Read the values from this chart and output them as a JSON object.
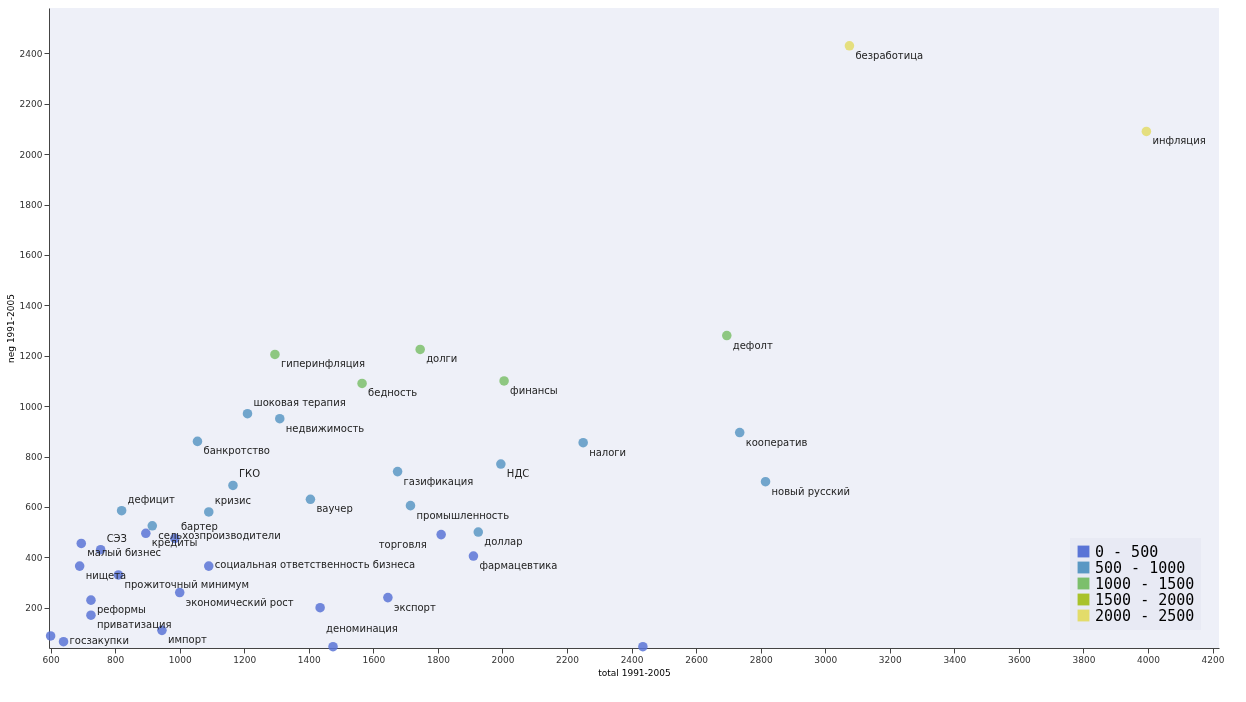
{
  "chart_data": {
    "type": "scatter",
    "xlabel": "total 1991-2005",
    "ylabel": "neg 1991-2005",
    "xlim": [
      595,
      4220
    ],
    "ylim": [
      40,
      2580
    ],
    "xticks": [
      600,
      800,
      1000,
      1200,
      1400,
      1600,
      1800,
      2000,
      2200,
      2400,
      2600,
      2800,
      3000,
      3200,
      3400,
      3600,
      3800,
      4000,
      4200
    ],
    "yticks": [
      200,
      400,
      600,
      800,
      1000,
      1200,
      1400,
      1600,
      1800,
      2000,
      2200,
      2400
    ],
    "legend": "bottom right",
    "series": [
      {
        "name": "0 - 500",
        "color": "#5a74d6",
        "x": [
          1810,
          1910,
          695,
          755,
          690,
          810,
          1090,
          1000,
          725,
          725,
          945,
          640,
          600,
          1645,
          1435,
          1475,
          2435,
          895,
          985
        ],
        "values": [
          490,
          405,
          455,
          430,
          365,
          330,
          365,
          260,
          230,
          170,
          110,
          65,
          88,
          240,
          200,
          45,
          45,
          495,
          475
        ]
      },
      {
        "name": "500 - 1000",
        "color": "#5a98c4",
        "x": [
          820,
          1090,
          1405,
          1165,
          1715,
          1675,
          1925,
          1995,
          2250,
          2735,
          2815,
          1055,
          1210,
          1310,
          915
        ],
        "values": [
          585,
          580,
          630,
          685,
          605,
          740,
          500,
          770,
          855,
          895,
          700,
          860,
          970,
          950,
          525
        ]
      },
      {
        "name": "1000 - 1500",
        "color": "#7cbf6c",
        "x": [
          1295,
          1745,
          1565,
          2005,
          2695
        ],
        "values": [
          1205,
          1225,
          1090,
          1100,
          1280
        ]
      },
      {
        "name": "1500 - 2000",
        "color": "#a9c22a"
      },
      {
        "name": "2000 - 2500",
        "color": "#e3dc6a",
        "x": [
          3075,
          3995
        ],
        "values": [
          2430,
          2090
        ]
      }
    ],
    "annotations": [
      {
        "text": "торговля",
        "x": 1810,
        "y": 490
      },
      {
        "text": "фармацевтика",
        "x": 1910,
        "y": 405
      },
      {
        "text": "малый бизнес",
        "x": 695,
        "y": 455
      },
      {
        "text": "СЭЗ",
        "x": 755,
        "y": 430
      },
      {
        "text": "нищета",
        "x": 690,
        "y": 365
      },
      {
        "text": "прожиточный минимум",
        "x": 810,
        "y": 330
      },
      {
        "text": "социальная ответственность бизнеса",
        "x": 1090,
        "y": 365
      },
      {
        "text": "экономический рост",
        "x": 1000,
        "y": 260
      },
      {
        "text": "реформы",
        "x": 725,
        "y": 230
      },
      {
        "text": "приватизация",
        "x": 725,
        "y": 170
      },
      {
        "text": "импорт",
        "x": 945,
        "y": 110
      },
      {
        "text": "госзакупки",
        "x": 640,
        "y": 65
      },
      {
        "text": "экспорт",
        "x": 1645,
        "y": 240
      },
      {
        "text": "деноминация",
        "x": 1435,
        "y": 200
      },
      {
        "text": "кредиты",
        "x": 895,
        "y": 495
      },
      {
        "text": "бартер",
        "x": 985,
        "y": 475
      },
      {
        "text": "дефицит",
        "x": 820,
        "y": 585
      },
      {
        "text": "кризис",
        "x": 1090,
        "y": 580
      },
      {
        "text": "ваучер",
        "x": 1405,
        "y": 630
      },
      {
        "text": "ГКО",
        "x": 1165,
        "y": 685
      },
      {
        "text": "промышленность",
        "x": 1715,
        "y": 605
      },
      {
        "text": "газификация",
        "x": 1675,
        "y": 740
      },
      {
        "text": "доллар",
        "x": 1925,
        "y": 500
      },
      {
        "text": "НДС",
        "x": 1995,
        "y": 770
      },
      {
        "text": "налоги",
        "x": 2250,
        "y": 855
      },
      {
        "text": "кооператив",
        "x": 2735,
        "y": 895
      },
      {
        "text": "новый русский",
        "x": 2815,
        "y": 700
      },
      {
        "text": "банкротство",
        "x": 1055,
        "y": 860
      },
      {
        "text": "шоковая терапия",
        "x": 1210,
        "y": 970
      },
      {
        "text": "недвижимость",
        "x": 1310,
        "y": 950
      },
      {
        "text": "сельхозпроизводители",
        "x": 915,
        "y": 525
      },
      {
        "text": "гиперинфляция",
        "x": 1295,
        "y": 1205
      },
      {
        "text": "долги",
        "x": 1745,
        "y": 1225
      },
      {
        "text": "бедность",
        "x": 1565,
        "y": 1090
      },
      {
        "text": "финансы",
        "x": 2005,
        "y": 1100
      },
      {
        "text": "дефолт",
        "x": 2695,
        "y": 1280
      },
      {
        "text": "безработица",
        "x": 3075,
        "y": 2430
      },
      {
        "text": "инфляция",
        "x": 3995,
        "y": 2090
      }
    ]
  }
}
